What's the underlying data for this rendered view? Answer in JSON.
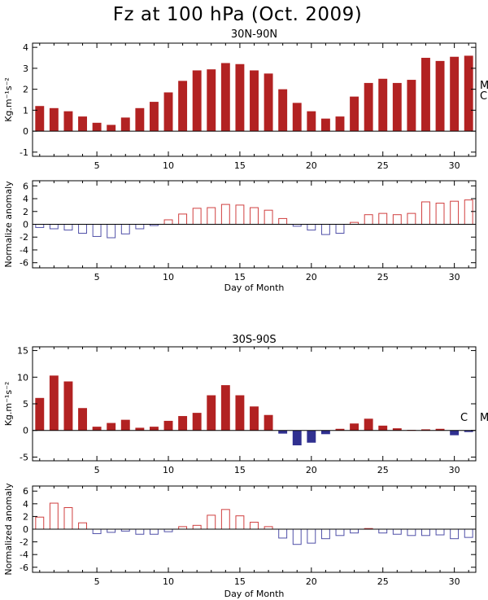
{
  "title": "Fz at 100 hPa (Oct. 2009)",
  "colors": {
    "positive": "#b22222",
    "negative": "#303090",
    "anom_pos": "#d04040",
    "anom_neg": "#5050a8"
  },
  "chart_data": [
    {
      "id": "nh_flux",
      "type": "bar",
      "title": "30N-90N",
      "ylabel": "Kg.m⁻¹s⁻²",
      "xlabel": "",
      "ylim": [
        -1.2,
        4.2
      ],
      "yticks": [
        -1,
        0,
        1,
        2,
        3,
        4
      ],
      "xticks": [
        5,
        10,
        15,
        20,
        25,
        30
      ],
      "xlim": [
        0.5,
        31.5
      ],
      "filled": true,
      "x": [
        1,
        2,
        3,
        4,
        5,
        6,
        7,
        8,
        9,
        10,
        11,
        12,
        13,
        14,
        15,
        16,
        17,
        18,
        19,
        20,
        21,
        22,
        23,
        24,
        25,
        26,
        27,
        28,
        29,
        30,
        31
      ],
      "values": [
        1.2,
        1.1,
        0.95,
        0.7,
        0.4,
        0.3,
        0.65,
        1.1,
        1.4,
        1.85,
        2.4,
        2.9,
        2.95,
        3.25,
        3.2,
        2.9,
        2.75,
        2.0,
        1.35,
        0.95,
        0.6,
        0.7,
        1.65,
        2.3,
        2.5,
        2.3,
        2.45,
        3.5,
        3.35,
        3.55,
        3.6
      ],
      "side_labels": [
        "M",
        "C"
      ]
    },
    {
      "id": "nh_anomaly",
      "type": "bar",
      "title": "",
      "ylabel": "Normalize anomaly",
      "xlabel": "Day of Month",
      "ylim": [
        -6.8,
        6.8
      ],
      "yticks": [
        -6,
        -4,
        -2,
        0,
        2,
        4,
        6
      ],
      "xticks": [
        5,
        10,
        15,
        20,
        25,
        30
      ],
      "xlim": [
        0.5,
        31.5
      ],
      "filled": false,
      "x": [
        1,
        2,
        3,
        4,
        5,
        6,
        7,
        8,
        9,
        10,
        11,
        12,
        13,
        14,
        15,
        16,
        17,
        18,
        19,
        20,
        21,
        22,
        23,
        24,
        25,
        26,
        27,
        28,
        29,
        30,
        31
      ],
      "values": [
        -0.5,
        -0.7,
        -0.9,
        -1.4,
        -1.9,
        -2.1,
        -1.5,
        -0.7,
        -0.2,
        0.7,
        1.6,
        2.5,
        2.6,
        3.1,
        3.0,
        2.6,
        2.2,
        0.9,
        -0.3,
        -0.9,
        -1.6,
        -1.4,
        0.3,
        1.5,
        1.7,
        1.5,
        1.7,
        3.5,
        3.3,
        3.6,
        3.8
      ]
    },
    {
      "id": "sh_flux",
      "type": "bar",
      "title": "30S-90S",
      "ylabel": "Kg.m⁻¹s⁻²",
      "xlabel": "",
      "ylim": [
        -5.7,
        15.7
      ],
      "yticks": [
        -5,
        0,
        5,
        10,
        15
      ],
      "xticks": [
        5,
        10,
        15,
        20,
        25,
        30
      ],
      "xlim": [
        0.5,
        31.5
      ],
      "filled": true,
      "x": [
        1,
        2,
        3,
        4,
        5,
        6,
        7,
        8,
        9,
        10,
        11,
        12,
        13,
        14,
        15,
        16,
        17,
        18,
        19,
        20,
        21,
        22,
        23,
        24,
        25,
        26,
        27,
        28,
        29,
        30,
        31
      ],
      "values": [
        6.1,
        10.3,
        9.2,
        4.2,
        0.7,
        1.4,
        2.0,
        0.5,
        0.7,
        1.8,
        2.7,
        3.3,
        6.6,
        8.5,
        6.6,
        4.5,
        2.9,
        -0.6,
        -2.8,
        -2.3,
        -0.7,
        0.3,
        1.3,
        2.2,
        0.9,
        0.4,
        0.1,
        0.2,
        0.3,
        -0.9,
        -0.3
      ],
      "side_labels": [
        "C",
        "M"
      ]
    },
    {
      "id": "sh_anomaly",
      "type": "bar",
      "title": "",
      "ylabel": "Normalized anomaly",
      "xlabel": "Day of Month",
      "ylim": [
        -6.8,
        6.8
      ],
      "yticks": [
        -6,
        -4,
        -2,
        0,
        2,
        4,
        6
      ],
      "xticks": [
        5,
        10,
        15,
        20,
        25,
        30
      ],
      "xlim": [
        0.5,
        31.5
      ],
      "filled": false,
      "x": [
        1,
        2,
        3,
        4,
        5,
        6,
        7,
        8,
        9,
        10,
        11,
        12,
        13,
        14,
        15,
        16,
        17,
        18,
        19,
        20,
        21,
        22,
        23,
        24,
        25,
        26,
        27,
        28,
        29,
        30,
        31
      ],
      "values": [
        1.9,
        4.1,
        3.4,
        1.0,
        -0.7,
        -0.5,
        -0.3,
        -0.8,
        -0.8,
        -0.4,
        0.4,
        0.6,
        2.2,
        3.1,
        2.1,
        1.1,
        0.4,
        -1.4,
        -2.4,
        -2.2,
        -1.5,
        -1.0,
        -0.6,
        0.1,
        -0.6,
        -0.8,
        -1.0,
        -1.0,
        -0.9,
        -1.5,
        -1.3
      ]
    }
  ]
}
